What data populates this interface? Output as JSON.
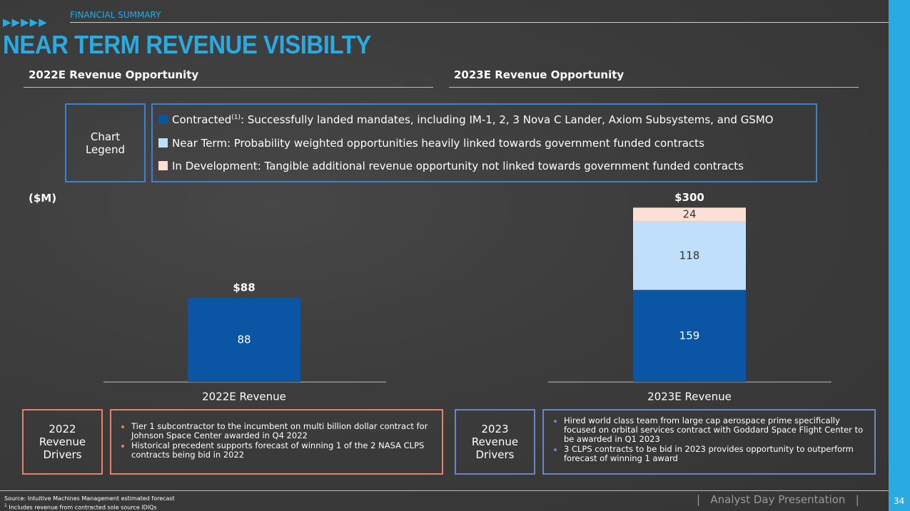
{
  "header": {
    "section": "FINANCIAL SUMMARY",
    "title": "NEAR TERM REVENUE VISIBILTY"
  },
  "panels": [
    {
      "heading": "2022E Revenue Opportunity"
    },
    {
      "heading": "2023E Revenue Opportunity"
    }
  ],
  "legend": {
    "title": "Chart\nLegend",
    "items": [
      {
        "note": "(1)",
        "description": ": Successfully landed mandates, including IM-1, 2, 3 Nova C Lander, Axiom Subsystems, and GSMO"
      },
      {
        "description": ": Probability weighted opportunities heavily linked towards government funded contracts"
      },
      {
        "description": ": Tangible additional revenue opportunity not linked towards government funded contracts"
      }
    ]
  },
  "unit_label": "($M)",
  "chart_data": [
    {
      "type": "bar",
      "stacked": true,
      "categories": [
        "2022E Revenue"
      ],
      "series": [
        {
          "name": "Contracted",
          "color": "#0b56a4",
          "values": [
            88
          ]
        }
      ],
      "totals": [
        88
      ],
      "total_labels": [
        "$88"
      ],
      "ylim": [
        0,
        198
      ]
    },
    {
      "type": "bar",
      "stacked": true,
      "categories": [
        "2023E Revenue"
      ],
      "series": [
        {
          "name": "Contracted",
          "color": "#0b56a4",
          "values": [
            159
          ]
        },
        {
          "name": "Near Term",
          "color": "#bfdffb",
          "values": [
            118
          ]
        },
        {
          "name": "In Development",
          "color": "#fde0d4",
          "values": [
            24
          ]
        }
      ],
      "totals": [
        300
      ],
      "total_labels": [
        "$300"
      ],
      "ylim": [
        0,
        326
      ]
    }
  ],
  "drivers": [
    {
      "title": "2022\nRevenue\nDrivers",
      "bullets": [
        "Tier 1 subcontractor to the incumbent on multi billion dollar contract for Johnson Space Center awarded in Q4 2022",
        "Historical precedent supports forecast of winning 1 of the 2 NASA CLPS contracts being bid in 2022"
      ]
    },
    {
      "title": "2023\nRevenue\nDrivers",
      "bullets": [
        "Hired world class team from large cap aerospace prime specifically focused on orbital services contract with Goddard Space Flight Center to be awarded in Q1 2023",
        "3 CLPS contracts to be bid in 2023 provides opportunity to outperform forecast of winning 1 award"
      ]
    }
  ],
  "footer": {
    "source": "Source: Intuitive Machines Management estimated forecast",
    "footnote_mark": "1",
    "footnote": "Includes revenue from contracted sole source IDIQs",
    "presentation": "Analyst Day Presentation",
    "page": 34
  }
}
